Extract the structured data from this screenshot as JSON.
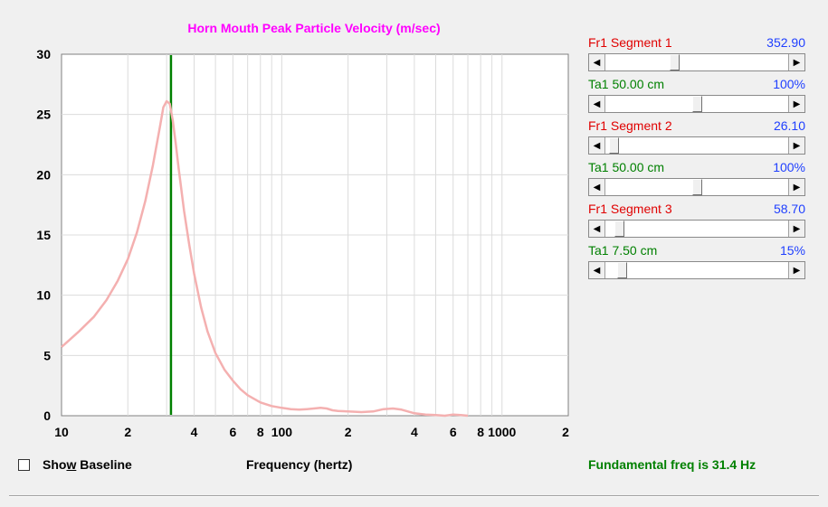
{
  "chart_data": {
    "type": "line",
    "title": "Horn Mouth Peak Particle Velocity (m/sec)",
    "xlabel": "Frequency (hertz)",
    "ylabel": "",
    "xscale": "log",
    "xlim": [
      10,
      2000
    ],
    "ylim": [
      0,
      30
    ],
    "yticks": [
      "0",
      "5",
      "10",
      "15",
      "20",
      "25",
      "30"
    ],
    "xticks": [
      {
        "label": "10",
        "value": 10
      },
      {
        "label": "2",
        "value": 20
      },
      {
        "label": "4",
        "value": 40
      },
      {
        "label": "6",
        "value": 60
      },
      {
        "label": "8",
        "value": 80
      },
      {
        "label": "100",
        "value": 100
      },
      {
        "label": "2",
        "value": 200
      },
      {
        "label": "4",
        "value": 400
      },
      {
        "label": "6",
        "value": 600
      },
      {
        "label": "8",
        "value": 800
      },
      {
        "label": "1000",
        "value": 1000
      },
      {
        "label": "2",
        "value": 2000
      }
    ],
    "grid": true,
    "marker": {
      "x": 31.4,
      "color": "#008000"
    },
    "series": [
      {
        "color": "#f4b0b0",
        "x": [
          10,
          12,
          14,
          16,
          18,
          20,
          22,
          24,
          26,
          28,
          29,
          30,
          31,
          32,
          33,
          34,
          36,
          38,
          40,
          43,
          46,
          50,
          55,
          60,
          65,
          70,
          80,
          90,
          100,
          110,
          120,
          130,
          140,
          150,
          160,
          170,
          180,
          200,
          230,
          260,
          290,
          320,
          350,
          400,
          450,
          500,
          550,
          600,
          650,
          700
        ],
        "y": [
          5.7,
          7.0,
          8.2,
          9.6,
          11.2,
          13.0,
          15.2,
          17.8,
          20.8,
          24.0,
          25.6,
          26.1,
          25.9,
          24.5,
          22.6,
          20.6,
          17.0,
          14.2,
          11.8,
          9.0,
          7.0,
          5.2,
          3.8,
          2.9,
          2.2,
          1.7,
          1.1,
          0.8,
          0.65,
          0.55,
          0.5,
          0.55,
          0.6,
          0.65,
          0.6,
          0.45,
          0.4,
          0.35,
          0.3,
          0.35,
          0.55,
          0.6,
          0.5,
          0.2,
          0.1,
          0.05,
          0.0,
          0.1,
          0.05,
          0.0
        ]
      }
    ]
  },
  "controls": {
    "show_baseline_pre": "Sho",
    "show_baseline_u": "w",
    "show_baseline_post": " Baseline",
    "show_baseline_checked": false,
    "fundamental": "Fundamental freq is 31.4 Hz",
    "fundamental_color": "#008000"
  },
  "panel": {
    "rows": [
      {
        "label": "Fr1  Segment 1",
        "value": "352.90",
        "color": "#e00000",
        "thumb_pct": 0.37
      },
      {
        "label": "Ta1  50.00 cm",
        "value": "100%",
        "color": "#008000",
        "thumb_pct": 0.5
      },
      {
        "label": "Fr1  Segment 2",
        "value": "26.10",
        "color": "#e00000",
        "thumb_pct": 0.02
      },
      {
        "label": "Ta1  50.00 cm",
        "value": "100%",
        "color": "#008000",
        "thumb_pct": 0.5
      },
      {
        "label": "Fr1  Segment 3",
        "value": "58.70",
        "color": "#e00000",
        "thumb_pct": 0.05
      },
      {
        "label": "Ta1  7.50 cm",
        "value": "15%",
        "color": "#008000",
        "thumb_pct": 0.07
      }
    ]
  }
}
